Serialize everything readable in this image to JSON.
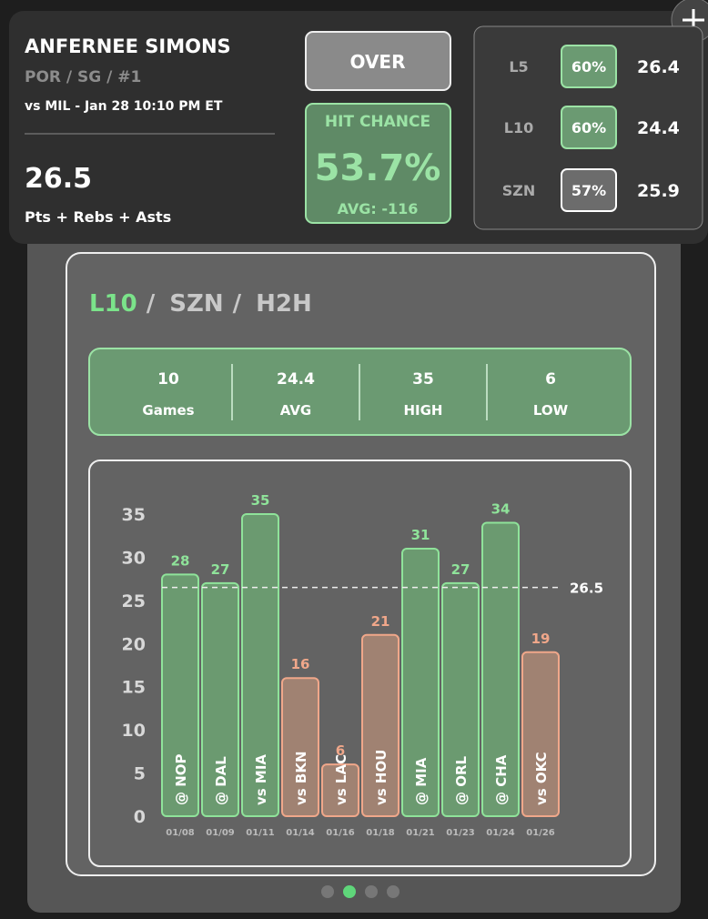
{
  "header": {
    "player": "ANFERNEE SIMONS",
    "team_info": "POR / SG / #1",
    "matchup": "vs MIL - Jan 28 10:10 PM ET",
    "line": "26.5",
    "stat": "Pts + Rebs + Asts"
  },
  "pick": "OVER",
  "hit_chance": {
    "label": "HIT CHANCE",
    "value": "53.7%",
    "avg": "AVG: -116"
  },
  "splits": [
    {
      "label": "L5",
      "pct": "60%",
      "avg": "26.4"
    },
    {
      "label": "L10",
      "pct": "60%",
      "avg": "24.4"
    },
    {
      "label": "SZN",
      "pct": "57%",
      "avg": "25.9"
    }
  ],
  "tabs": [
    "L10",
    "SZN",
    "H2H"
  ],
  "tab_separator": "/",
  "summary": [
    {
      "value": "10",
      "label": "Games"
    },
    {
      "value": "24.4",
      "label": "AVG"
    },
    {
      "value": "35",
      "label": "HIGH"
    },
    {
      "value": "6",
      "label": "LOW"
    }
  ],
  "chart_data": {
    "type": "bar",
    "categories": [
      "@ NOP",
      "@ DAL",
      "vs MIA",
      "vs BKN",
      "vs LAC",
      "vs HOU",
      "@ MIA",
      "@ ORL",
      "@ CHA",
      "vs OKC"
    ],
    "dates": [
      "01/08",
      "01/09",
      "01/11",
      "01/14",
      "01/16",
      "01/18",
      "01/21",
      "01/23",
      "01/24",
      "01/26"
    ],
    "values": [
      28,
      27,
      35,
      16,
      6,
      21,
      31,
      27,
      34,
      19
    ],
    "colors": [
      "#6b9a70",
      "#6b9a70",
      "#6b9a70",
      "#a08272",
      "#a08272",
      "#a08272",
      "#6b9a70",
      "#6b9a70",
      "#6b9a70",
      "#a08272"
    ],
    "ylim": [
      0,
      35
    ],
    "yticks": [
      0,
      5,
      10,
      15,
      20,
      25,
      30,
      35
    ],
    "line_value": 26.5
  }
}
